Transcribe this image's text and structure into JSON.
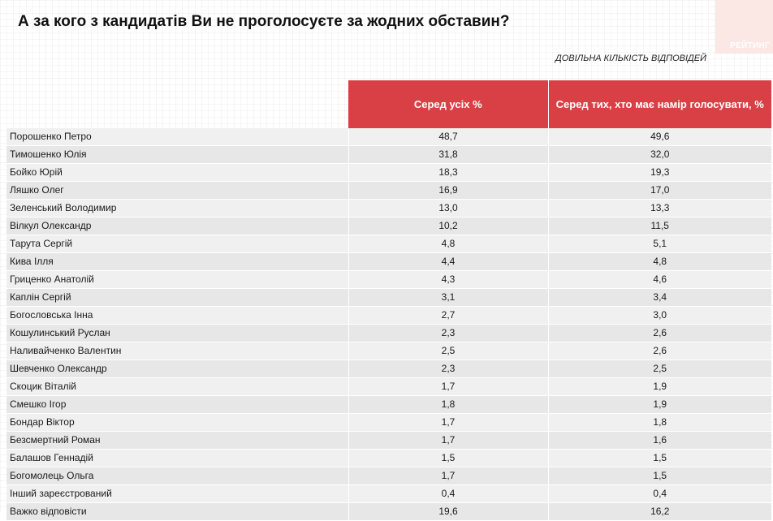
{
  "title": "А за кого з кандидатів Ви не проголосуєте за жодних обставин?",
  "logo_text": "РЕЙТИНГ",
  "subtitle": "ДОВІЛЬНА КІЛЬКІСТЬ ВІДПОВІДЕЙ",
  "columns": [
    "Серед усіх %",
    "Серед тих, хто має намір голосувати, %"
  ],
  "rows": [
    {
      "name": "Порошенко Петро",
      "all": "48,7",
      "voters": "49,6"
    },
    {
      "name": "Тимошенко Юлія",
      "all": "31,8",
      "voters": "32,0"
    },
    {
      "name": "Бойко Юрій",
      "all": "18,3",
      "voters": "19,3"
    },
    {
      "name": "Ляшко Олег",
      "all": "16,9",
      "voters": "17,0"
    },
    {
      "name": "Зеленський Володимир",
      "all": "13,0",
      "voters": "13,3"
    },
    {
      "name": "Вілкул Олександр",
      "all": "10,2",
      "voters": "11,5"
    },
    {
      "name": "Тарута Сергій",
      "all": "4,8",
      "voters": "5,1"
    },
    {
      "name": "Кива Ілля",
      "all": "4,4",
      "voters": "4,8"
    },
    {
      "name": "Гриценко Анатолій",
      "all": "4,3",
      "voters": "4,6"
    },
    {
      "name": "Каплін Сергій",
      "all": "3,1",
      "voters": "3,4"
    },
    {
      "name": "Богословська Інна",
      "all": "2,7",
      "voters": "3,0"
    },
    {
      "name": "Кошулинський Руслан",
      "all": "2,3",
      "voters": "2,6"
    },
    {
      "name": "Наливайченко Валентин",
      "all": "2,5",
      "voters": "2,6"
    },
    {
      "name": "Шевченко Олександр",
      "all": "2,3",
      "voters": "2,5"
    },
    {
      "name": "Скоцик Віталій",
      "all": "1,7",
      "voters": "1,9"
    },
    {
      "name": "Смешко Ігор",
      "all": "1,8",
      "voters": "1,9"
    },
    {
      "name": "Бондар Віктор",
      "all": "1,7",
      "voters": "1,8"
    },
    {
      "name": "Безсмертний Роман",
      "all": "1,7",
      "voters": "1,6"
    },
    {
      "name": "Балашов Геннадій",
      "all": "1,5",
      "voters": "1,5"
    },
    {
      "name": "Богомолець Ольга",
      "all": "1,7",
      "voters": "1,5"
    },
    {
      "name": "Інший зареєстрований",
      "all": "0,4",
      "voters": "0,4"
    },
    {
      "name": "Важко відповісти",
      "all": "19,6",
      "voters": "16,2"
    }
  ],
  "colors": {
    "header": "#d94046",
    "row_light": "#f0f0f0",
    "row_dark": "#e7e7e7",
    "logo_bg": "#fbe7e4"
  }
}
